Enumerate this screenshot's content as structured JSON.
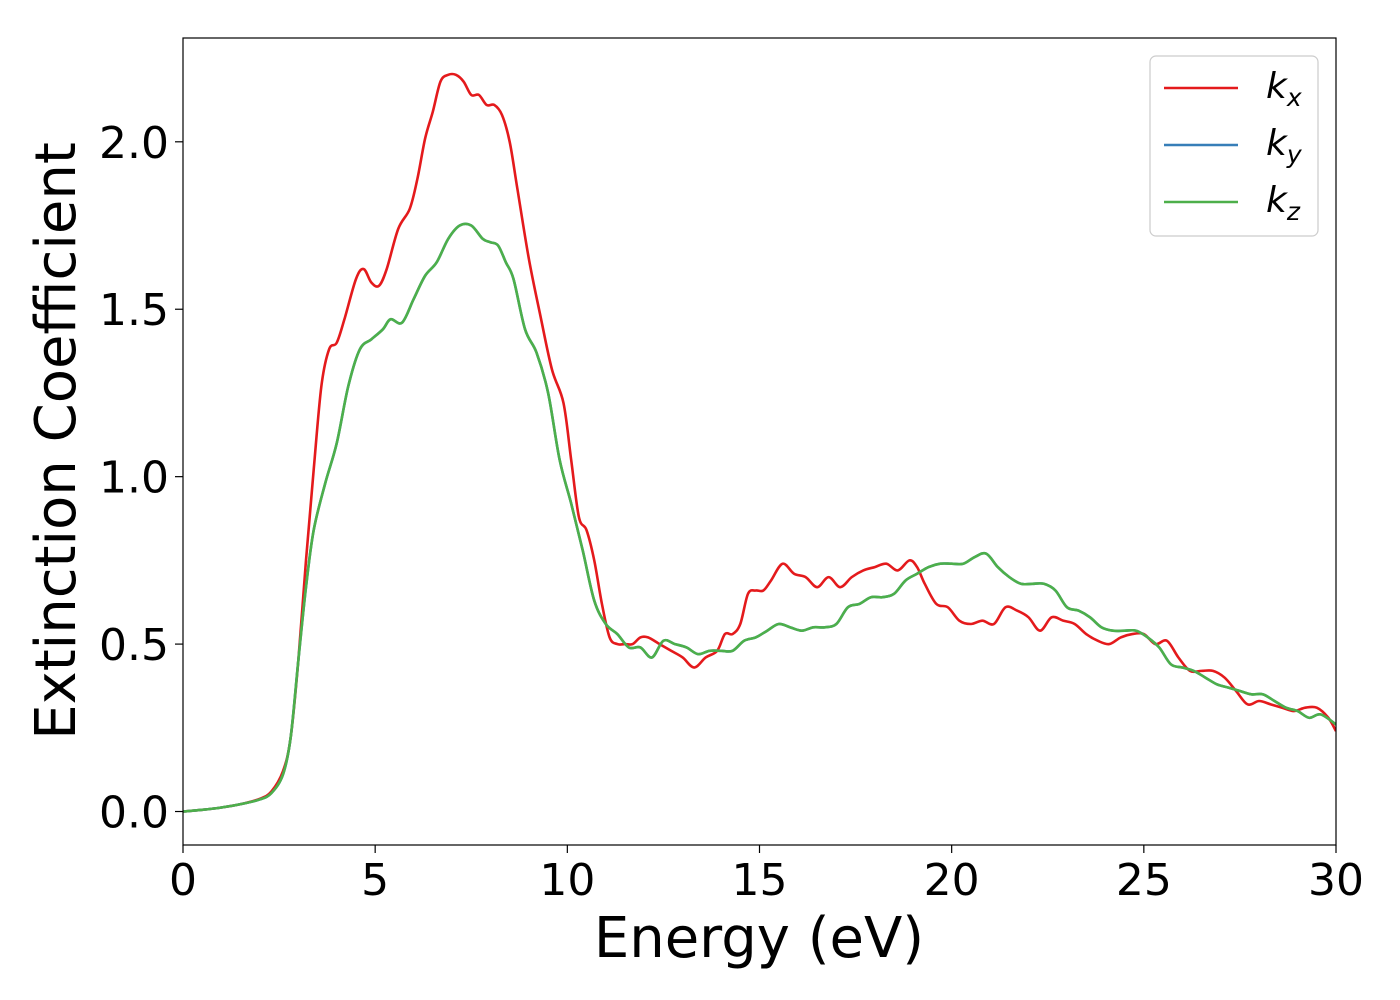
{
  "chart_data": {
    "type": "line",
    "title": "",
    "xlabel": "Energy (eV)",
    "ylabel": "Extinction Coefficient",
    "xlim": [
      0,
      30
    ],
    "ylim": [
      -0.1,
      2.31
    ],
    "xticks": [
      "0",
      "5",
      "10",
      "15",
      "20",
      "25",
      "30"
    ],
    "yticks": [
      "0.0",
      "0.5",
      "1.0",
      "1.5",
      "2.0"
    ],
    "grid": false,
    "legend_position": "top-right",
    "series": [
      {
        "name": "k_x",
        "label_main": "k",
        "label_sub": "x",
        "color": "#e41a1c",
        "x": [
          0,
          0.5,
          1,
          1.5,
          2,
          2.3,
          2.6,
          2.8,
          3,
          3.2,
          3.4,
          3.6,
          3.8,
          4,
          4.2,
          4.5,
          4.7,
          4.9,
          5.1,
          5.3,
          5.6,
          5.9,
          6.1,
          6.3,
          6.5,
          6.7,
          6.9,
          7.1,
          7.3,
          7.5,
          7.7,
          7.9,
          8.1,
          8.3,
          8.5,
          8.7,
          9.0,
          9.3,
          9.6,
          9.9,
          10.1,
          10.3,
          10.5,
          10.7,
          10.9,
          11.1,
          11.3,
          11.5,
          11.7,
          11.9,
          12.1,
          12.4,
          12.7,
          13.0,
          13.3,
          13.6,
          13.9,
          14.1,
          14.3,
          14.5,
          14.7,
          14.9,
          15.1,
          15.3,
          15.6,
          15.9,
          16.2,
          16.5,
          16.8,
          17.1,
          17.4,
          17.7,
          18.0,
          18.3,
          18.6,
          18.9,
          19.1,
          19.3,
          19.6,
          19.9,
          20.2,
          20.5,
          20.8,
          21.1,
          21.4,
          21.7,
          22.0,
          22.3,
          22.6,
          22.9,
          23.2,
          23.5,
          23.8,
          24.1,
          24.4,
          24.7,
          25.0,
          25.3,
          25.6,
          25.9,
          26.2,
          26.5,
          26.8,
          27.1,
          27.4,
          27.7,
          28.0,
          28.3,
          28.6,
          28.9,
          29.2,
          29.5,
          29.8,
          30
        ],
        "y": [
          0.0,
          0.005,
          0.012,
          0.022,
          0.038,
          0.06,
          0.12,
          0.22,
          0.45,
          0.75,
          1.02,
          1.27,
          1.38,
          1.4,
          1.47,
          1.59,
          1.62,
          1.58,
          1.57,
          1.62,
          1.74,
          1.8,
          1.89,
          2.01,
          2.09,
          2.18,
          2.2,
          2.2,
          2.18,
          2.14,
          2.14,
          2.11,
          2.11,
          2.08,
          2.0,
          1.86,
          1.65,
          1.48,
          1.32,
          1.22,
          1.05,
          0.88,
          0.84,
          0.75,
          0.62,
          0.52,
          0.5,
          0.5,
          0.5,
          0.52,
          0.52,
          0.5,
          0.48,
          0.46,
          0.43,
          0.46,
          0.48,
          0.53,
          0.53,
          0.56,
          0.65,
          0.66,
          0.66,
          0.69,
          0.74,
          0.71,
          0.7,
          0.67,
          0.7,
          0.67,
          0.7,
          0.72,
          0.73,
          0.74,
          0.72,
          0.75,
          0.73,
          0.68,
          0.62,
          0.61,
          0.57,
          0.56,
          0.57,
          0.56,
          0.61,
          0.6,
          0.58,
          0.54,
          0.58,
          0.57,
          0.56,
          0.53,
          0.51,
          0.5,
          0.52,
          0.53,
          0.53,
          0.5,
          0.51,
          0.46,
          0.42,
          0.42,
          0.42,
          0.4,
          0.36,
          0.32,
          0.33,
          0.32,
          0.31,
          0.3,
          0.31,
          0.31,
          0.28,
          0.24
        ]
      },
      {
        "name": "k_y",
        "label_main": "k",
        "label_sub": "y",
        "color": "#377eb8",
        "x": [
          0,
          0.5,
          1,
          1.5,
          2,
          2.3,
          2.6,
          2.8,
          3,
          3.2,
          3.4,
          3.7,
          4.0,
          4.3,
          4.6,
          4.9,
          5.2,
          5.4,
          5.7,
          6.0,
          6.3,
          6.6,
          6.9,
          7.2,
          7.5,
          7.8,
          8.0,
          8.2,
          8.4,
          8.6,
          8.9,
          9.2,
          9.5,
          9.8,
          10.1,
          10.4,
          10.7,
          11.0,
          11.3,
          11.6,
          11.9,
          12.2,
          12.5,
          12.8,
          13.1,
          13.4,
          13.7,
          14.0,
          14.3,
          14.6,
          14.9,
          15.2,
          15.5,
          15.8,
          16.1,
          16.4,
          16.7,
          17.0,
          17.3,
          17.6,
          17.9,
          18.2,
          18.5,
          18.8,
          19.1,
          19.4,
          19.7,
          20.0,
          20.3,
          20.6,
          20.9,
          21.2,
          21.5,
          21.8,
          22.1,
          22.4,
          22.7,
          23.0,
          23.3,
          23.6,
          23.9,
          24.2,
          24.5,
          24.8,
          25.1,
          25.4,
          25.7,
          26.0,
          26.3,
          26.6,
          26.9,
          27.2,
          27.5,
          27.8,
          28.1,
          28.4,
          28.7,
          29.0,
          29.3,
          29.6,
          30
        ],
        "y": [
          0.0,
          0.005,
          0.012,
          0.022,
          0.036,
          0.055,
          0.11,
          0.22,
          0.45,
          0.67,
          0.84,
          0.98,
          1.1,
          1.27,
          1.38,
          1.41,
          1.44,
          1.47,
          1.46,
          1.53,
          1.6,
          1.64,
          1.71,
          1.75,
          1.75,
          1.71,
          1.7,
          1.69,
          1.64,
          1.59,
          1.44,
          1.37,
          1.25,
          1.05,
          0.92,
          0.78,
          0.63,
          0.56,
          0.53,
          0.49,
          0.49,
          0.46,
          0.51,
          0.5,
          0.49,
          0.47,
          0.48,
          0.48,
          0.48,
          0.51,
          0.52,
          0.54,
          0.56,
          0.55,
          0.54,
          0.55,
          0.55,
          0.56,
          0.61,
          0.62,
          0.64,
          0.64,
          0.65,
          0.69,
          0.71,
          0.73,
          0.74,
          0.74,
          0.74,
          0.76,
          0.77,
          0.73,
          0.7,
          0.68,
          0.68,
          0.68,
          0.66,
          0.61,
          0.6,
          0.58,
          0.55,
          0.54,
          0.54,
          0.54,
          0.52,
          0.49,
          0.44,
          0.43,
          0.42,
          0.4,
          0.38,
          0.37,
          0.36,
          0.35,
          0.35,
          0.33,
          0.31,
          0.3,
          0.28,
          0.29,
          0.26
        ]
      },
      {
        "name": "k_z",
        "label_main": "k",
        "label_sub": "z",
        "color": "#4daf4a",
        "x": [
          0,
          0.5,
          1,
          1.5,
          2,
          2.3,
          2.6,
          2.8,
          3,
          3.2,
          3.4,
          3.7,
          4.0,
          4.3,
          4.6,
          4.9,
          5.2,
          5.4,
          5.7,
          6.0,
          6.3,
          6.6,
          6.9,
          7.2,
          7.5,
          7.8,
          8.0,
          8.2,
          8.4,
          8.6,
          8.9,
          9.2,
          9.5,
          9.8,
          10.1,
          10.4,
          10.7,
          11.0,
          11.3,
          11.6,
          11.9,
          12.2,
          12.5,
          12.8,
          13.1,
          13.4,
          13.7,
          14.0,
          14.3,
          14.6,
          14.9,
          15.2,
          15.5,
          15.8,
          16.1,
          16.4,
          16.7,
          17.0,
          17.3,
          17.6,
          17.9,
          18.2,
          18.5,
          18.8,
          19.1,
          19.4,
          19.7,
          20.0,
          20.3,
          20.6,
          20.9,
          21.2,
          21.5,
          21.8,
          22.1,
          22.4,
          22.7,
          23.0,
          23.3,
          23.6,
          23.9,
          24.2,
          24.5,
          24.8,
          25.1,
          25.4,
          25.7,
          26.0,
          26.3,
          26.6,
          26.9,
          27.2,
          27.5,
          27.8,
          28.1,
          28.4,
          28.7,
          29.0,
          29.3,
          29.6,
          30
        ],
        "y": [
          0.0,
          0.005,
          0.012,
          0.022,
          0.036,
          0.055,
          0.11,
          0.22,
          0.45,
          0.67,
          0.84,
          0.98,
          1.1,
          1.27,
          1.38,
          1.41,
          1.44,
          1.47,
          1.46,
          1.53,
          1.6,
          1.64,
          1.71,
          1.75,
          1.75,
          1.71,
          1.7,
          1.69,
          1.64,
          1.59,
          1.44,
          1.37,
          1.25,
          1.05,
          0.92,
          0.78,
          0.63,
          0.56,
          0.53,
          0.49,
          0.49,
          0.46,
          0.51,
          0.5,
          0.49,
          0.47,
          0.48,
          0.48,
          0.48,
          0.51,
          0.52,
          0.54,
          0.56,
          0.55,
          0.54,
          0.55,
          0.55,
          0.56,
          0.61,
          0.62,
          0.64,
          0.64,
          0.65,
          0.69,
          0.71,
          0.73,
          0.74,
          0.74,
          0.74,
          0.76,
          0.77,
          0.73,
          0.7,
          0.68,
          0.68,
          0.68,
          0.66,
          0.61,
          0.6,
          0.58,
          0.55,
          0.54,
          0.54,
          0.54,
          0.52,
          0.49,
          0.44,
          0.43,
          0.42,
          0.4,
          0.38,
          0.37,
          0.36,
          0.35,
          0.35,
          0.33,
          0.31,
          0.3,
          0.28,
          0.29,
          0.26
        ]
      }
    ]
  }
}
